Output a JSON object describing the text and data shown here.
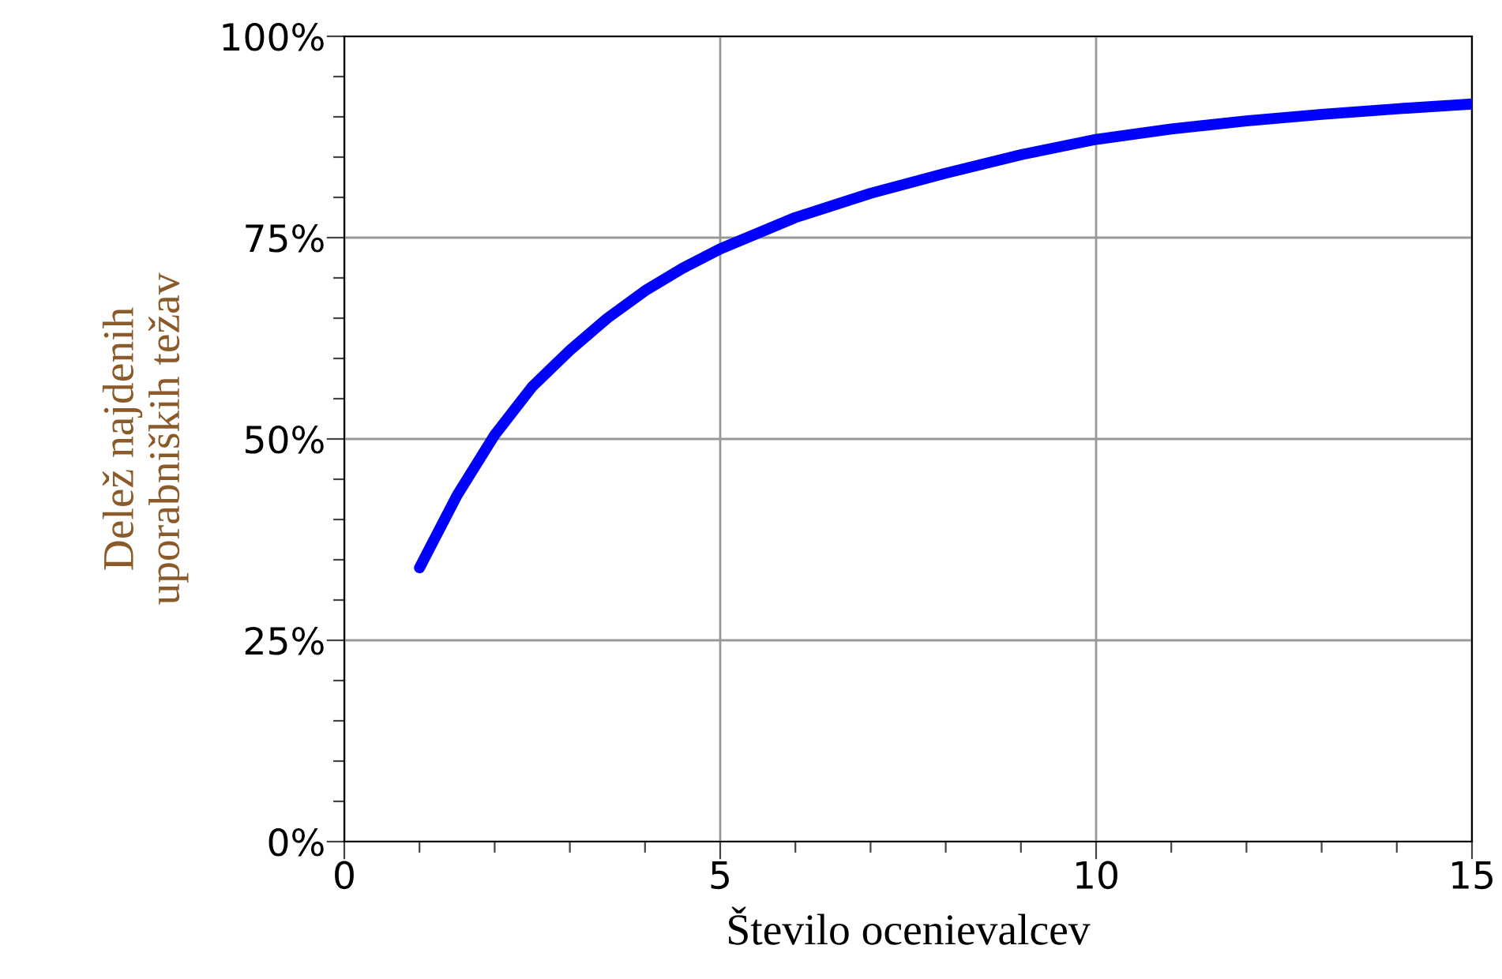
{
  "chart_data": {
    "type": "line",
    "xlabel": "Število ocenievalcev",
    "ylabel": "Delež najdenih\nuporabniških težav",
    "x": [
      1,
      1.5,
      2,
      2.5,
      3,
      3.5,
      4,
      4.5,
      5,
      6,
      7,
      8,
      9,
      10,
      11,
      12,
      13,
      14,
      15
    ],
    "series": [
      {
        "color": "#0000ff",
        "values": [
          34,
          43,
          50.5,
          56.5,
          61,
          65,
          68.4,
          71.2,
          73.6,
          77.5,
          80.5,
          83,
          85.3,
          87.2,
          88.5,
          89.5,
          90.3,
          91,
          91.6
        ]
      }
    ],
    "xlim": [
      0,
      15
    ],
    "ylim": [
      0,
      100
    ],
    "xticks": [
      0,
      {
        "value": 1,
        "label": null
      },
      {
        "value": 2,
        "label": null
      },
      {
        "value": 3,
        "label": null
      },
      {
        "value": 4,
        "label": null
      },
      5,
      {
        "value": 6,
        "label": null
      },
      {
        "value": 7,
        "label": null
      },
      {
        "value": 8,
        "label": null
      },
      {
        "value": 9,
        "label": null
      },
      10,
      {
        "value": 11,
        "label": null
      },
      {
        "value": 12,
        "label": null
      },
      {
        "value": 13,
        "label": null
      },
      {
        "value": 14,
        "label": null
      },
      15
    ],
    "yticks": [
      {
        "value": 0,
        "label": "0%"
      },
      {
        "value": 5,
        "label": null
      },
      {
        "value": 10,
        "label": null
      },
      {
        "value": 15,
        "label": null
      },
      {
        "value": 20,
        "label": null
      },
      {
        "value": 25,
        "label": "25%"
      },
      {
        "value": 30,
        "label": null
      },
      {
        "value": 35,
        "label": null
      },
      {
        "value": 40,
        "label": null
      },
      {
        "value": 45,
        "label": null
      },
      {
        "value": 50,
        "label": "50%"
      },
      {
        "value": 55,
        "label": null
      },
      {
        "value": 60,
        "label": null
      },
      {
        "value": 65,
        "label": null
      },
      {
        "value": 70,
        "label": null
      },
      {
        "value": 75,
        "label": "75%"
      },
      {
        "value": 80,
        "label": null
      },
      {
        "value": 85,
        "label": null
      },
      {
        "value": 90,
        "label": null
      },
      {
        "value": 95,
        "label": null
      },
      {
        "value": 100,
        "label": "100%"
      }
    ],
    "grid": true,
    "marker": "none",
    "line_style": "solid",
    "legend": false
  }
}
